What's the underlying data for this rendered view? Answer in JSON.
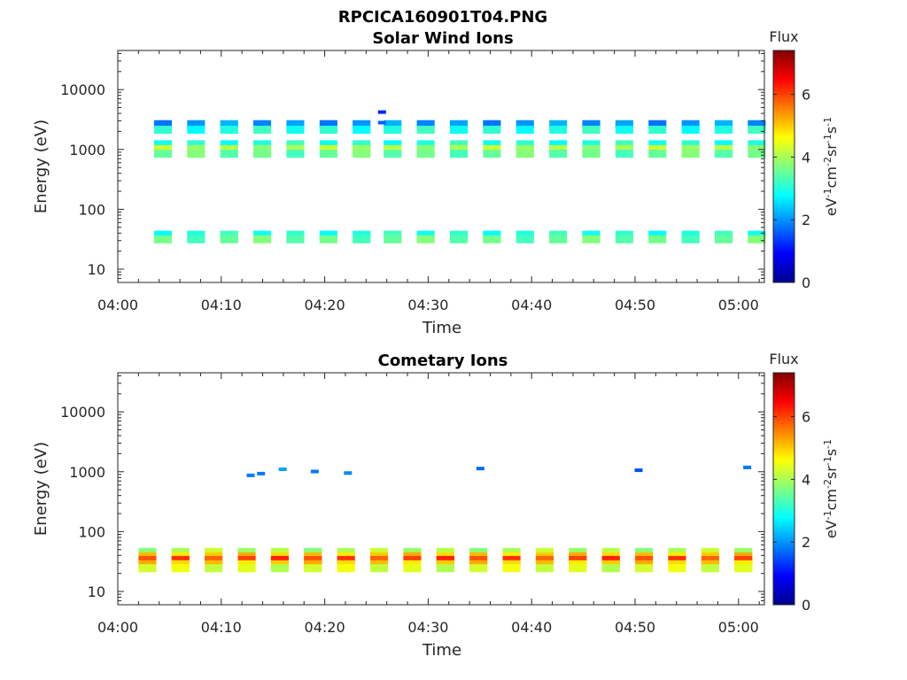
{
  "figure_title": "RPCICA160901T04.PNG",
  "colorbar": {
    "title": "Flux",
    "unit_label": "eV-1cm-2sr-1s-1",
    "range": [
      0,
      7.4
    ],
    "ticks": [
      "0",
      "2",
      "4",
      "6"
    ],
    "colormap": "jet"
  },
  "chart_data": [
    {
      "type": "heatmap",
      "title": "Solar Wind Ions",
      "xlabel": "Time",
      "ylabel": "Energy (eV)",
      "x_tick_labels": [
        "04:00",
        "04:10",
        "04:20",
        "04:30",
        "04:40",
        "04:50",
        "05:00"
      ],
      "x_tick_minutes": [
        0,
        10,
        20,
        30,
        40,
        50,
        60
      ],
      "xlim_minutes": [
        0,
        62.5
      ],
      "y_tick_labels": [
        "10",
        "100",
        "1000",
        "10000"
      ],
      "y_tick_values": [
        10,
        100,
        1000,
        10000
      ],
      "ylim": [
        6,
        45000
      ],
      "y_scale": "log",
      "sweep_start_minutes": [
        3.5,
        6.7,
        9.9,
        13.1,
        16.3,
        19.5,
        22.7,
        25.7,
        28.9,
        32.1,
        35.3,
        38.5,
        41.7,
        44.9,
        48.1,
        51.3,
        54.5,
        57.7,
        60.9
      ],
      "bands": [
        {
          "energy": 2600,
          "flux": 2.0
        },
        {
          "energy": 2100,
          "flux": 3.0
        },
        {
          "energy": 1200,
          "flux": 3.0
        },
        {
          "energy": 1000,
          "flux": 4.0
        },
        {
          "energy": 830,
          "flux": 3.5
        },
        {
          "energy": 37,
          "flux": 3.0
        },
        {
          "energy": 31,
          "flux": 3.5
        }
      ],
      "extra_points": [
        {
          "minute": 25.5,
          "energy": 4200,
          "flux": 1.2
        },
        {
          "minute": 25.5,
          "energy": 2800,
          "flux": 1.6
        }
      ]
    },
    {
      "type": "heatmap",
      "title": "Cometary Ions",
      "xlabel": "Time",
      "ylabel": "Energy (eV)",
      "x_tick_labels": [
        "04:00",
        "04:10",
        "04:20",
        "04:30",
        "04:40",
        "04:50",
        "05:00"
      ],
      "x_tick_minutes": [
        0,
        10,
        20,
        30,
        40,
        50,
        60
      ],
      "xlim_minutes": [
        0,
        62.5
      ],
      "y_tick_labels": [
        "10",
        "100",
        "1000",
        "10000"
      ],
      "y_tick_values": [
        10,
        100,
        1000,
        10000
      ],
      "ylim": [
        6,
        45000
      ],
      "y_scale": "log",
      "sweep_start_minutes": [
        2.0,
        5.2,
        8.4,
        11.6,
        14.8,
        18.0,
        21.2,
        24.4,
        27.6,
        30.8,
        34.0,
        37.2,
        40.4,
        43.6,
        46.8,
        50.0,
        53.2,
        56.4,
        59.6
      ],
      "bands": [
        {
          "energy": 45,
          "flux": 4.0
        },
        {
          "energy": 38,
          "flux": 5.0
        },
        {
          "energy": 33,
          "flux": 6.0
        },
        {
          "energy": 28,
          "flux": 5.0
        },
        {
          "energy": 24,
          "flux": 4.3
        }
      ],
      "extra_points": [
        {
          "minute": 12.8,
          "energy": 870,
          "flux": 1.8
        },
        {
          "minute": 13.8,
          "energy": 930,
          "flux": 1.8
        },
        {
          "minute": 15.9,
          "energy": 1100,
          "flux": 2.1
        },
        {
          "minute": 19.0,
          "energy": 1010,
          "flux": 1.8
        },
        {
          "minute": 22.2,
          "energy": 950,
          "flux": 1.9
        },
        {
          "minute": 35.0,
          "energy": 1130,
          "flux": 1.7
        },
        {
          "minute": 50.3,
          "energy": 1060,
          "flux": 1.5
        },
        {
          "minute": 60.8,
          "energy": 1180,
          "flux": 1.8
        }
      ]
    }
  ]
}
